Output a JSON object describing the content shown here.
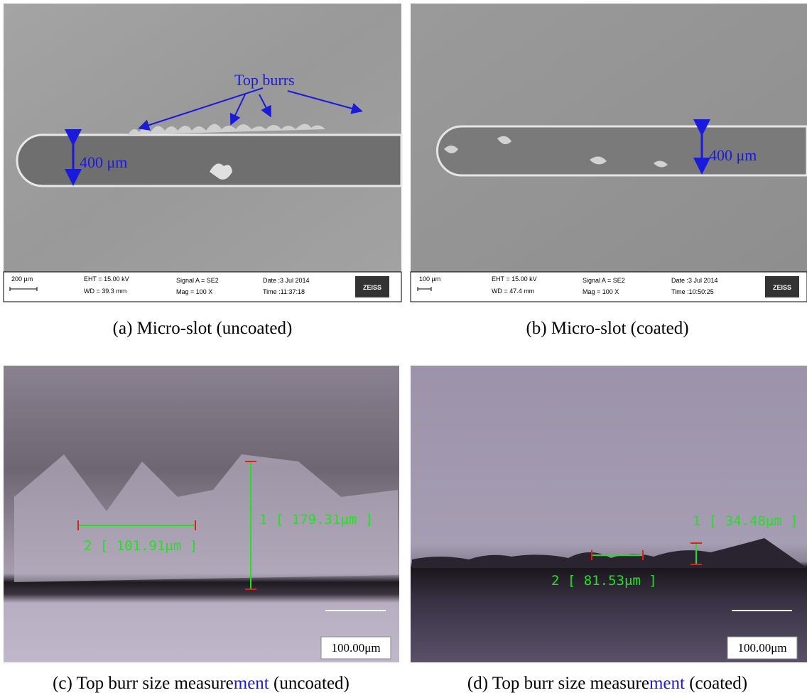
{
  "panels": [
    {
      "caption": "(a) Micro-slot (uncoated)",
      "annotations": [
        "Top burrs",
        "400 μm"
      ],
      "info": {
        "scale": "200 µm",
        "eht": "EHT = 15.00 kV",
        "wd": "WD = 39.3 mm",
        "signal": "Signal A = SE2",
        "mag": "Mag =    100 X",
        "date": "Date :3 Jul 2014",
        "time": "Time :11:37:18",
        "logo": "ZEISS"
      }
    },
    {
      "caption": "(b) Micro-slot (coated)",
      "annotations": [
        "400 μm"
      ],
      "info": {
        "scale": "100 µm",
        "eht": "EHT = 15.00 kV",
        "wd": "WD = 47.4 mm",
        "signal": "Signal A = SE2",
        "mag": "Mag =    100 X",
        "date": "Date :3 Jul 2014",
        "time": "Time :10:50:25",
        "logo": "ZEISS"
      }
    },
    {
      "caption": [
        "(c) Top burr size measure",
        "ment",
        " (uncoated)"
      ],
      "measurements": [
        "1 [ 179.31μm ]",
        "2 [ 101.91μm ]"
      ],
      "scale": "100.00μm"
    },
    {
      "caption": [
        "(d) Top burr size measure",
        "ment",
        " (coated)"
      ],
      "measurements": [
        "1 [ 34.48μm ]",
        "2 [ 81.53μm ]"
      ],
      "scale": "100.00μm"
    }
  ]
}
